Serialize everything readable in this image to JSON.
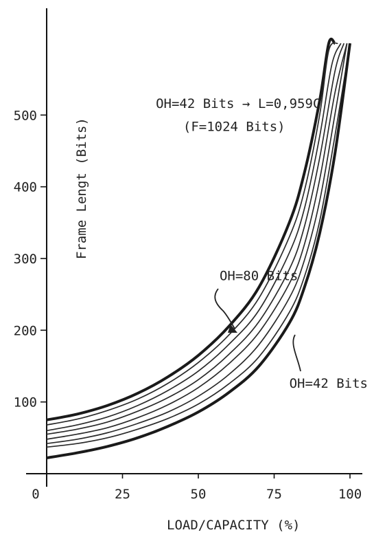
{
  "chart_data": {
    "type": "line",
    "title": "",
    "xlabel": "LOAD/CAPACITY (%)",
    "ylabel": "Frame Lengt (Bits)",
    "xlim": [
      0,
      100
    ],
    "ylim": [
      0,
      600
    ],
    "xticks": [
      "0",
      "25",
      "50",
      "75",
      "100"
    ],
    "yticks": [
      "100",
      "200",
      "300",
      "400",
      "500"
    ],
    "grid": false,
    "legend": "none",
    "annotations": [
      {
        "text": "OH=42 Bits → L=0,959C",
        "x": 36,
        "y": 510
      },
      {
        "text": "(F=1024 Bits)",
        "x": 45,
        "y": 478
      },
      {
        "text": "OH=80 Bits",
        "x": 57,
        "y": 270
      },
      {
        "text": "OH=42 Bits",
        "x": 80,
        "y": 120
      }
    ],
    "series": [
      {
        "x": [
          0,
          10,
          20,
          30,
          40,
          50,
          60,
          70,
          80,
          85,
          90,
          93,
          95
        ],
        "y": [
          75,
          83,
          95,
          112,
          135,
          165,
          205,
          260,
          350,
          420,
          520,
          600,
          600
        ]
      },
      {
        "x": [
          0,
          10,
          20,
          30,
          40,
          50,
          60,
          70,
          80,
          85,
          90,
          93,
          96
        ],
        "y": [
          68,
          76,
          88,
          104,
          126,
          155,
          193,
          245,
          330,
          395,
          500,
          590,
          600
        ]
      },
      {
        "x": [
          0,
          10,
          20,
          30,
          40,
          50,
          60,
          70,
          80,
          85,
          90,
          94,
          97
        ],
        "y": [
          60,
          68,
          79,
          95,
          116,
          143,
          180,
          228,
          308,
          370,
          470,
          570,
          600
        ]
      },
      {
        "x": [
          0,
          10,
          20,
          30,
          40,
          50,
          60,
          70,
          80,
          85,
          90,
          95,
          98
        ],
        "y": [
          55,
          62,
          72,
          87,
          106,
          131,
          166,
          212,
          285,
          345,
          440,
          560,
          600
        ]
      },
      {
        "x": [
          0,
          10,
          20,
          30,
          40,
          50,
          60,
          70,
          80,
          85,
          90,
          95,
          99
        ],
        "y": [
          48,
          55,
          64,
          78,
          96,
          120,
          153,
          197,
          265,
          320,
          410,
          530,
          600
        ]
      },
      {
        "x": [
          0,
          10,
          20,
          30,
          40,
          50,
          60,
          70,
          80,
          85,
          90,
          95,
          99
        ],
        "y": [
          42,
          48,
          57,
          70,
          86,
          108,
          138,
          180,
          245,
          298,
          380,
          500,
          600
        ]
      },
      {
        "x": [
          0,
          10,
          20,
          30,
          40,
          50,
          60,
          70,
          80,
          85,
          90,
          95,
          100
        ],
        "y": [
          37,
          42,
          50,
          62,
          77,
          97,
          125,
          163,
          225,
          275,
          352,
          470,
          600
        ]
      },
      {
        "x": [
          0,
          10,
          20,
          30,
          40,
          50,
          60,
          70,
          80,
          85,
          90,
          95,
          100
        ],
        "y": [
          22,
          29,
          38,
          50,
          66,
          86,
          113,
          150,
          210,
          260,
          335,
          445,
          600
        ]
      }
    ]
  }
}
